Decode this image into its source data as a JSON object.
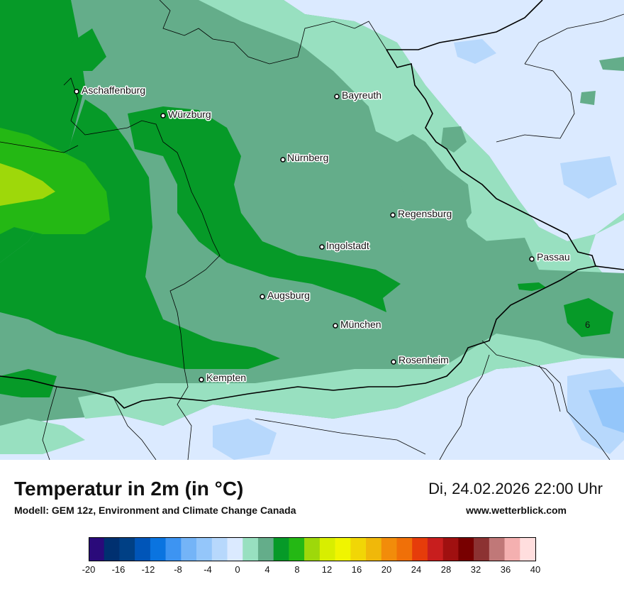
{
  "map": {
    "cities": [
      {
        "name": "Aschaffenburg"
      },
      {
        "name": "Würzburg"
      },
      {
        "name": "Bayreuth"
      },
      {
        "name": "Nürnberg"
      },
      {
        "name": "Regensburg"
      },
      {
        "name": "Ingolstadt"
      },
      {
        "name": "Passau"
      },
      {
        "name": "Augsburg"
      },
      {
        "name": "München"
      },
      {
        "name": "Rosenheim"
      },
      {
        "name": "Kempten"
      }
    ],
    "value_labels": [
      "6"
    ]
  },
  "footer": {
    "title": "Temperatur in 2m (in °C)",
    "model": "Modell: GEM 12z, Environment and Climate Change Canada",
    "datetime": "Di, 24.02.2026 22:00 Uhr",
    "website": "www.wetterblick.com"
  },
  "legend": {
    "ticks": [
      "-20",
      "-16",
      "-12",
      "-8",
      "-4",
      "0",
      "4",
      "8",
      "12",
      "16",
      "20",
      "24",
      "28",
      "32",
      "36",
      "40"
    ],
    "colors": [
      "#2a0a7a",
      "#003070",
      "#004085",
      "#0055b8",
      "#0a74e0",
      "#3d94f2",
      "#74b4f7",
      "#94c6fa",
      "#b7d8fc",
      "#dbeaff",
      "#98e0c0",
      "#64ad8a",
      "#069a28",
      "#24b814",
      "#9ed80a",
      "#d8ee00",
      "#f0f500",
      "#f1d606",
      "#f0b80a",
      "#f28c0a",
      "#f07008",
      "#e63c0a",
      "#c81e1e",
      "#a01010",
      "#780000",
      "#8c3232",
      "#c07878",
      "#f4b0b0",
      "#ffdede"
    ]
  }
}
